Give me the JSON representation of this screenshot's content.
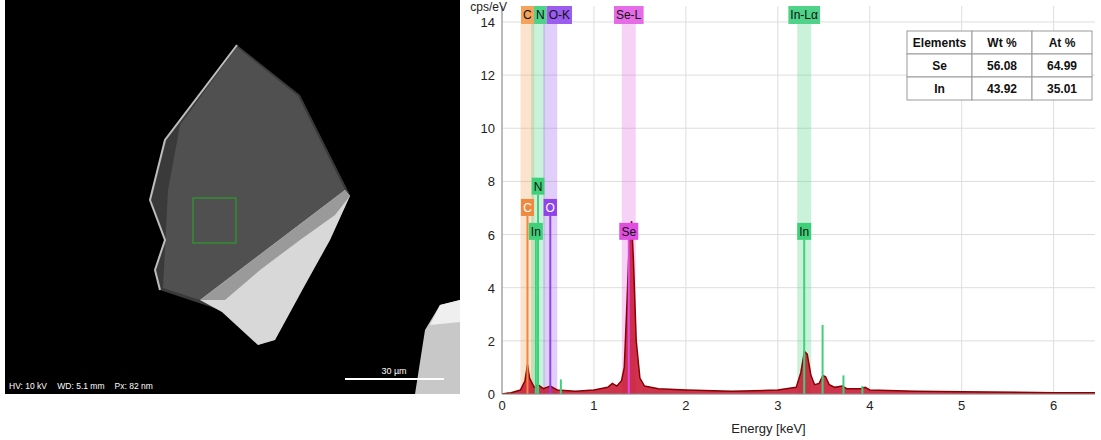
{
  "image": {
    "info": [
      "HV: 10 kV",
      "WD: 5.1 mm",
      "Px: 82 nm"
    ],
    "scale_bar": "30 µm"
  },
  "chart_data": {
    "type": "area",
    "ylabel": "cps/eV",
    "xlabel": "Energy [keV]",
    "xlim": [
      0,
      6.45
    ],
    "xticks": [
      0,
      1,
      2,
      3,
      4,
      5,
      6
    ],
    "ylim": [
      0,
      14.6
    ],
    "yticks": [
      0,
      2,
      4,
      6,
      8,
      10,
      12,
      14
    ],
    "grid": true,
    "color": "#c8102e",
    "x": [
      0,
      0.1,
      0.2,
      0.25,
      0.277,
      0.3,
      0.35,
      0.39,
      0.45,
      0.525,
      0.6,
      0.8,
      1.0,
      1.15,
      1.2,
      1.25,
      1.3,
      1.33,
      1.36,
      1.39,
      1.41,
      1.43,
      1.46,
      1.5,
      1.55,
      1.7,
      2.0,
      2.5,
      3.0,
      3.2,
      3.25,
      3.29,
      3.32,
      3.36,
      3.4,
      3.45,
      3.49,
      3.52,
      3.56,
      3.62,
      3.7,
      3.75,
      3.9,
      3.95,
      4.0,
      4.5,
      5.0,
      6.0,
      6.45
    ],
    "values": [
      0,
      0.05,
      0.15,
      0.5,
      1.1,
      0.6,
      0.25,
      0.35,
      0.2,
      0.3,
      0.15,
      0.1,
      0.15,
      0.25,
      0.4,
      0.3,
      0.5,
      1.0,
      3.5,
      6.2,
      6.5,
      5.0,
      2.0,
      0.6,
      0.3,
      0.2,
      0.15,
      0.1,
      0.15,
      0.25,
      0.8,
      1.6,
      1.5,
      0.7,
      0.35,
      0.4,
      0.7,
      0.65,
      0.35,
      0.25,
      0.3,
      0.2,
      0.2,
      0.25,
      0.15,
      0.1,
      0.08,
      0.05,
      0.05
    ],
    "bands": [
      {
        "label": "C",
        "x": 0.277,
        "color": "#f5a35c"
      },
      {
        "label": "N",
        "x": 0.392,
        "color": "#4fd389"
      },
      {
        "label": "O-K",
        "x": 0.525,
        "color": "#9b5cf0"
      },
      {
        "label": "Se-L",
        "x": 1.379,
        "color": "#e66be6"
      },
      {
        "label": "In-Lα",
        "x": 3.287,
        "color": "#4fd389"
      }
    ],
    "element_lines": [
      {
        "label": "N",
        "x": 0.392,
        "height": 7.5,
        "color": "#3fd07a"
      },
      {
        "label": "C",
        "x": 0.277,
        "height": 6.7,
        "color": "#f0883e"
      },
      {
        "label": "O",
        "x": 0.525,
        "height": 6.7,
        "color": "#8e44e8"
      },
      {
        "label": "In",
        "x": 0.368,
        "height": 5.8,
        "color": "#3fd07a"
      },
      {
        "label": "Se",
        "x": 1.379,
        "height": 5.8,
        "color": "#e04de0"
      },
      {
        "label": "In",
        "x": 3.287,
        "height": 5.8,
        "color": "#3fd07a"
      }
    ],
    "minor_lines": [
      {
        "x": 0.64,
        "height": 0.55,
        "color": "#3fd07a"
      },
      {
        "x": 3.487,
        "height": 2.6,
        "color": "#3fd07a"
      },
      {
        "x": 3.714,
        "height": 0.7,
        "color": "#3fd07a"
      },
      {
        "x": 3.92,
        "height": 0.3,
        "color": "#3fd07a"
      }
    ],
    "table": {
      "header": [
        "Elements",
        "Wt %",
        "At %"
      ],
      "rows": [
        [
          "Se",
          56.08,
          64.99
        ],
        [
          "In",
          43.92,
          35.01
        ]
      ]
    }
  }
}
